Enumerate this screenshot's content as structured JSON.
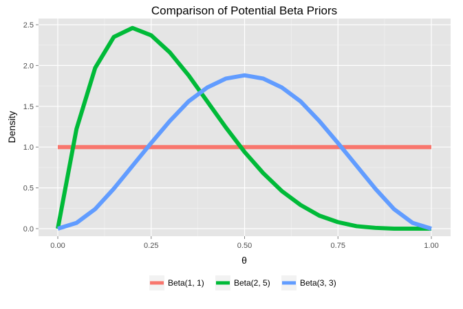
{
  "chart_data": {
    "type": "line",
    "title": "Comparison of Potential Beta Priors",
    "xlabel": "θ",
    "ylabel": "Density",
    "xlim": [
      0,
      1
    ],
    "ylim": [
      0,
      2.5
    ],
    "x_ticks": [
      0.0,
      0.25,
      0.5,
      0.75,
      1.0
    ],
    "x_tick_labels": [
      "0.00",
      "0.25",
      "0.50",
      "0.75",
      "1.00"
    ],
    "y_ticks": [
      0.0,
      0.5,
      1.0,
      1.5,
      2.0,
      2.5
    ],
    "y_tick_labels": [
      "0.0",
      "0.5",
      "1.0",
      "1.5",
      "2.0",
      "2.5"
    ],
    "grid": true,
    "legend_position": "bottom",
    "x": [
      0.0,
      0.05,
      0.1,
      0.15,
      0.2,
      0.25,
      0.3,
      0.35,
      0.4,
      0.45,
      0.5,
      0.55,
      0.6,
      0.65,
      0.7,
      0.75,
      0.8,
      0.85,
      0.9,
      0.95,
      1.0
    ],
    "series": [
      {
        "name": "Beta(1, 1)",
        "color": "#F8766D",
        "values": [
          1,
          1,
          1,
          1,
          1,
          1,
          1,
          1,
          1,
          1,
          1,
          1,
          1,
          1,
          1,
          1,
          1,
          1,
          1,
          1,
          1
        ]
      },
      {
        "name": "Beta(2, 5)",
        "color": "#00BA38",
        "values": [
          0.0,
          1.22,
          1.97,
          2.35,
          2.46,
          2.37,
          2.16,
          1.88,
          1.56,
          1.24,
          0.94,
          0.68,
          0.46,
          0.29,
          0.16,
          0.08,
          0.03,
          0.01,
          0.0,
          0.0,
          0.0
        ]
      },
      {
        "name": "Beta(3, 3)",
        "color": "#619CFF",
        "values": [
          0.0,
          0.07,
          0.24,
          0.49,
          0.77,
          1.05,
          1.32,
          1.56,
          1.73,
          1.84,
          1.88,
          1.84,
          1.73,
          1.56,
          1.32,
          1.05,
          0.77,
          0.49,
          0.24,
          0.07,
          0.0
        ]
      }
    ]
  }
}
